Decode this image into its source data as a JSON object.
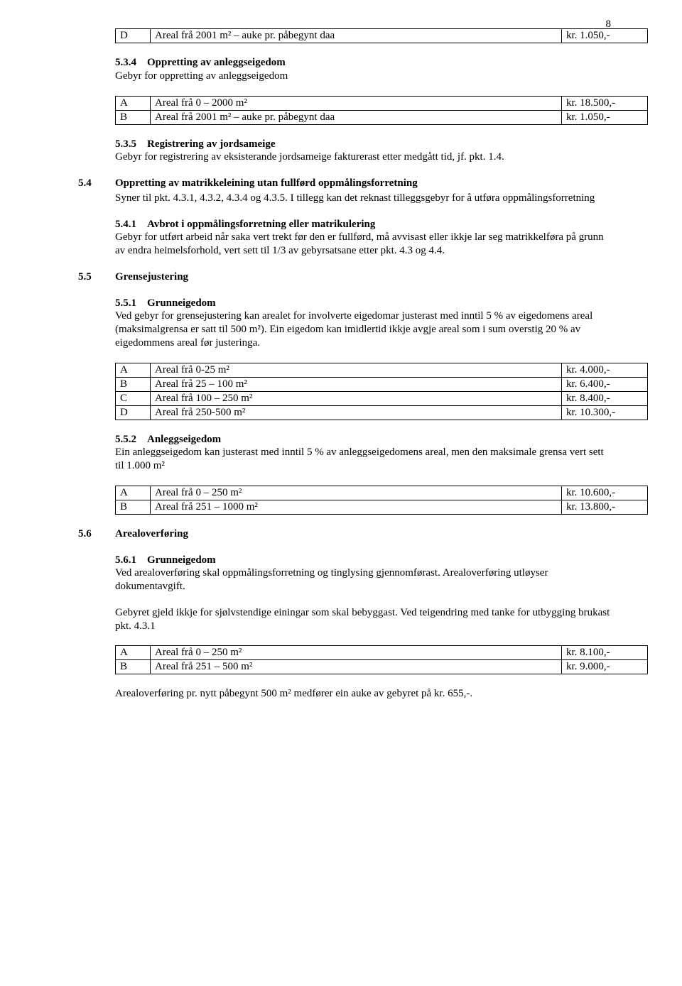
{
  "page_number": "8",
  "table_top": {
    "rows": [
      [
        "D",
        "Areal frå 2001 m² – auke pr. påbegynt daa",
        "kr.   1.050,-"
      ]
    ]
  },
  "s534": {
    "num": "5.3.4",
    "title": "Oppretting av anleggseigedom",
    "text": "Gebyr for oppretting av anleggseigedom",
    "table": {
      "rows": [
        [
          "A",
          "Areal frå 0 – 2000 m²",
          "kr. 18.500,-"
        ],
        [
          "B",
          "Areal frå 2001 m² – auke pr. påbegynt daa",
          "kr.   1.050,-"
        ]
      ]
    }
  },
  "s535": {
    "num": "5.3.5",
    "title": "Registrering av jordsameige",
    "text": "Gebyr for registrering av eksisterande jordsameige fakturerast etter medgått tid, jf.  pkt. 1.4."
  },
  "s54": {
    "num": "5.4",
    "title": "Oppretting av matrikkeleining utan fullførd oppmålingsforretning",
    "text": "Syner til pkt. 4.3.1, 4.3.2, 4.3.4 og 4.3.5.  I tillegg kan det reknast tilleggsgebyr for å utføra oppmålingsforretning"
  },
  "s541": {
    "num": "5.4.1",
    "title": "Avbrot i oppmålingsforretning eller matrikulering",
    "text": "Gebyr for utført arbeid når saka vert trekt før den er fullførd, må avvisast eller ikkje lar seg matrikkelføra på grunn av endra heimelsforhold, vert sett til 1/3 av gebyrsatsane etter pkt. 4.3 og 4.4."
  },
  "s55": {
    "num": "5.5",
    "title": "Grensejustering"
  },
  "s551": {
    "num": "5.5.1",
    "title": "Grunneigedom",
    "text": "Ved gebyr for grensejustering kan arealet for involverte eigedomar justerast med inntil 5 % av eigedomens areal (maksimalgrensa er satt til 500 m²).  Ein eigedom kan imidlertid ikkje avgje areal som i sum overstig 20 % av eigedommens areal før justeringa.",
    "table": {
      "rows": [
        [
          "A",
          "Areal frå 0-25 m²",
          "kr.   4.000,-"
        ],
        [
          "B",
          "Areal frå 25 – 100 m²",
          "kr.   6.400,-"
        ],
        [
          "C",
          "Areal frå 100 – 250 m²",
          "kr.   8.400,-"
        ],
        [
          "D",
          "Areal frå 250-500 m²",
          "kr. 10.300,-"
        ]
      ]
    }
  },
  "s552": {
    "num": "5.5.2",
    "title": "Anleggseigedom",
    "text": "Ein  anleggseigedom kan justerast med inntil 5 % av anleggseigedomens areal, men den maksimale grensa vert sett til 1.000 m²",
    "table": {
      "rows": [
        [
          "A",
          "Areal frå 0 – 250 m²",
          "kr. 10.600,-"
        ],
        [
          "B",
          "Areal frå 251 – 1000 m²",
          "kr. 13.800,-"
        ]
      ]
    }
  },
  "s56": {
    "num": "5.6",
    "title": "Arealoverføring"
  },
  "s561": {
    "num": "5.6.1",
    "title": "Grunneigedom",
    "text1": "Ved arealoverføring skal oppmålingsforretning og tinglysing gjennomførast. Arealoverføring utløyser dokumentavgift.",
    "text2": "Gebyret gjeld ikkje for sjølvstendige einingar som skal bebyggast. Ved teigendring med tanke for utbygging brukast pkt. 4.3.1",
    "table": {
      "rows": [
        [
          "A",
          "Areal frå 0 – 250 m²",
          "kr.   8.100,-"
        ],
        [
          "B",
          "Areal frå 251 – 500 m²",
          "kr.   9.000,-"
        ]
      ]
    },
    "text3": "Arealoverføring pr. nytt påbegynt 500 m² medfører ein auke av gebyret på kr. 655,-."
  }
}
